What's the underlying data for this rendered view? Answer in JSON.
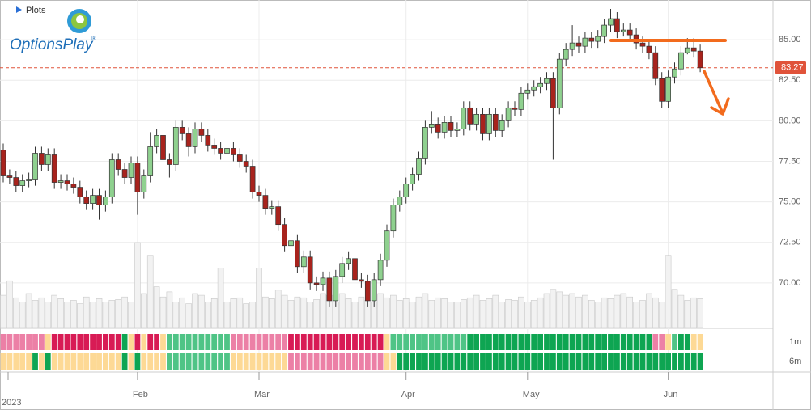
{
  "chart_data": {
    "type": "candlestick",
    "plots_label": "Plots",
    "brand": "OptionsPlay",
    "brand_mark": "®",
    "year_label": "2023",
    "categories": [
      null,
      null,
      null,
      null,
      null,
      null,
      null,
      null,
      null,
      null,
      null,
      null,
      null,
      null,
      null,
      null,
      null,
      null,
      null,
      null,
      null,
      "Feb",
      null,
      null,
      null,
      null,
      null,
      null,
      null,
      null,
      null,
      null,
      null,
      null,
      null,
      null,
      null,
      null,
      null,
      null,
      "Mar",
      null,
      null,
      null,
      null,
      null,
      null,
      null,
      null,
      null,
      null,
      null,
      null,
      null,
      null,
      null,
      null,
      null,
      null,
      null,
      null,
      null,
      null,
      "Apr",
      null,
      null,
      null,
      null,
      null,
      null,
      null,
      null,
      null,
      null,
      null,
      null,
      null,
      null,
      null,
      null,
      null,
      null,
      "May",
      null,
      null,
      null,
      null,
      null,
      null,
      null,
      null,
      null,
      null,
      null,
      null,
      null,
      null,
      null,
      null,
      null,
      null,
      null,
      null,
      null,
      "Jun",
      null,
      null,
      null,
      null,
      null
    ],
    "open": [
      78.2,
      76.6,
      76.5,
      76.0,
      76.3,
      76.4,
      78.0,
      77.3,
      77.9,
      76.2,
      76.3,
      76.1,
      75.9,
      75.3,
      74.9,
      75.4,
      74.8,
      75.3,
      77.6,
      77.0,
      76.5,
      77.4,
      75.6,
      76.6,
      78.4,
      79.1,
      77.6,
      77.3,
      79.6,
      79.2,
      78.4,
      79.5,
      79.1,
      78.5,
      78.3,
      78.0,
      78.3,
      77.9,
      77.5,
      77.2,
      75.6,
      75.4,
      74.6,
      74.7,
      73.6,
      72.3,
      72.6,
      71.0,
      71.6,
      70.0,
      69.9,
      70.3,
      68.9,
      70.4,
      71.2,
      71.5,
      70.2,
      70.1,
      68.9,
      70.2,
      71.4,
      73.2,
      74.8,
      75.3,
      76.1,
      76.7,
      77.7,
      79.6,
      79.8,
      79.3,
      79.9,
      79.4,
      79.5,
      80.8,
      79.8,
      80.4,
      79.2,
      80.4,
      79.4,
      80.0,
      80.8,
      80.7,
      81.7,
      81.9,
      82.1,
      82.3,
      82.6,
      80.8,
      83.8,
      84.4,
      84.8,
      84.6,
      85.1,
      84.9,
      85.2,
      85.9,
      86.3,
      85.5,
      85.6,
      85.3,
      84.8,
      84.6,
      84.2,
      82.6,
      81.2,
      82.7,
      83.2,
      84.2,
      84.5,
      84.3
    ],
    "high": [
      78.6,
      77.0,
      76.9,
      76.7,
      76.8,
      78.4,
      78.4,
      78.3,
      78.3,
      76.7,
      76.7,
      76.5,
      76.3,
      75.7,
      75.8,
      75.8,
      75.7,
      78.0,
      78.0,
      77.4,
      77.8,
      77.8,
      77.0,
      79.3,
      79.5,
      79.5,
      78.0,
      80.0,
      80.0,
      79.6,
      79.9,
      79.9,
      79.5,
      78.9,
      78.7,
      78.7,
      78.7,
      78.3,
      77.9,
      77.6,
      76.0,
      75.8,
      75.1,
      75.1,
      74.0,
      73.0,
      73.0,
      72.0,
      72.0,
      70.4,
      70.7,
      70.7,
      70.8,
      71.6,
      71.9,
      71.9,
      70.6,
      70.5,
      70.6,
      71.8,
      73.6,
      75.2,
      75.7,
      76.5,
      77.1,
      78.1,
      80.0,
      80.6,
      80.2,
      80.3,
      80.3,
      79.9,
      81.2,
      81.2,
      80.8,
      80.8,
      80.8,
      80.8,
      80.4,
      81.2,
      81.2,
      82.1,
      82.3,
      82.5,
      82.7,
      83.0,
      83.0,
      84.2,
      84.8,
      85.9,
      85.2,
      85.5,
      85.5,
      85.6,
      86.3,
      86.9,
      86.7,
      86.0,
      86.0,
      85.7,
      85.2,
      85.0,
      84.6,
      83.0,
      83.1,
      83.6,
      84.6,
      85.1,
      85.1,
      84.7
    ],
    "low": [
      76.2,
      76.1,
      75.6,
      75.6,
      75.9,
      76.0,
      76.9,
      76.9,
      75.8,
      75.8,
      75.7,
      75.5,
      74.9,
      74.5,
      74.5,
      73.9,
      74.4,
      74.9,
      76.6,
      76.1,
      76.1,
      74.2,
      75.2,
      76.2,
      78.0,
      77.2,
      76.5,
      76.9,
      78.8,
      77.8,
      78.0,
      78.7,
      78.1,
      77.9,
      77.6,
      77.6,
      77.5,
      77.1,
      76.8,
      75.2,
      75.0,
      74.2,
      74.2,
      73.2,
      71.9,
      71.9,
      70.6,
      70.6,
      69.6,
      69.5,
      69.5,
      68.5,
      68.5,
      70.0,
      70.8,
      69.8,
      69.7,
      68.5,
      68.5,
      69.8,
      71.0,
      72.8,
      74.4,
      74.9,
      75.7,
      76.3,
      77.3,
      79.2,
      78.9,
      78.9,
      79.0,
      79.0,
      79.1,
      79.4,
      79.4,
      78.8,
      78.8,
      79.0,
      79.0,
      79.6,
      80.3,
      80.3,
      81.3,
      81.5,
      81.7,
      81.9,
      77.6,
      80.4,
      83.4,
      84.0,
      84.2,
      84.2,
      84.5,
      84.5,
      84.8,
      85.5,
      85.1,
      85.2,
      84.9,
      84.4,
      84.2,
      83.8,
      82.2,
      80.8,
      80.8,
      82.3,
      82.8,
      84.1,
      83.9,
      83.0
    ],
    "close": [
      76.6,
      76.5,
      76.0,
      76.3,
      76.4,
      78.0,
      77.3,
      77.9,
      76.2,
      76.3,
      76.1,
      75.9,
      75.3,
      74.9,
      75.4,
      74.8,
      75.3,
      77.6,
      77.0,
      76.5,
      77.4,
      75.6,
      76.6,
      78.4,
      79.1,
      77.6,
      77.3,
      79.6,
      79.2,
      78.4,
      79.5,
      79.1,
      78.5,
      78.3,
      78.0,
      78.3,
      77.9,
      77.5,
      77.2,
      75.6,
      75.4,
      74.6,
      74.7,
      73.6,
      72.3,
      72.6,
      71.0,
      71.6,
      70.0,
      69.9,
      70.3,
      68.9,
      70.4,
      71.2,
      71.5,
      70.2,
      70.1,
      68.9,
      70.2,
      71.4,
      73.2,
      74.8,
      75.3,
      76.1,
      76.7,
      77.7,
      79.6,
      79.8,
      79.3,
      79.9,
      79.4,
      79.5,
      80.8,
      79.8,
      80.4,
      79.2,
      80.4,
      79.4,
      80.0,
      80.8,
      80.7,
      81.7,
      81.9,
      82.1,
      82.3,
      82.6,
      80.8,
      83.8,
      84.4,
      84.8,
      84.6,
      85.1,
      84.9,
      85.2,
      85.9,
      86.3,
      85.5,
      85.6,
      85.3,
      84.8,
      84.6,
      84.2,
      82.6,
      81.2,
      82.7,
      83.2,
      84.2,
      84.5,
      84.3,
      83.27
    ],
    "volume": [
      38,
      55,
      35,
      30,
      40,
      32,
      35,
      30,
      38,
      34,
      30,
      32,
      28,
      36,
      30,
      34,
      30,
      32,
      33,
      36,
      30,
      100,
      40,
      85,
      48,
      36,
      42,
      30,
      35,
      28,
      40,
      38,
      30,
      34,
      70,
      30,
      34,
      35,
      28,
      30,
      70,
      36,
      34,
      44,
      38,
      32,
      36,
      35,
      30,
      33,
      40,
      38,
      30,
      40,
      34,
      30,
      36,
      32,
      30,
      40,
      35,
      38,
      32,
      34,
      30,
      36,
      40,
      32,
      35,
      34,
      30,
      30,
      33,
      35,
      38,
      32,
      34,
      38,
      30,
      33,
      32,
      36,
      30,
      32,
      35,
      40,
      45,
      42,
      38,
      40,
      36,
      38,
      32,
      30,
      35,
      34,
      38,
      40,
      36,
      30,
      32,
      40,
      35,
      30,
      85,
      45,
      38,
      32,
      35,
      34
    ],
    "volume_lim": [
      0,
      100
    ],
    "ylim": [
      67.25,
      87.45
    ],
    "yticks": [
      {
        "value": 70,
        "label": "70.00"
      },
      {
        "value": 72.5,
        "label": "72.50"
      },
      {
        "value": 75,
        "label": "75.00"
      },
      {
        "value": 77.5,
        "label": "77.50"
      },
      {
        "value": 80,
        "label": "80.00"
      },
      {
        "value": 82.5,
        "label": "82.50"
      },
      {
        "value": 85,
        "label": "85.00"
      }
    ],
    "grid": true,
    "last_price": 83.27,
    "up_color": "#8fd18f",
    "down_color": "#a8231d",
    "volume_color": "#f2f2f2",
    "price_line_color": "#e0533a",
    "strip_palette": [
      "#d81b55",
      "#ec80a6",
      "#fdd995",
      "#4fc486",
      "#0ea552"
    ],
    "strips": [
      {
        "name": "1m",
        "values": [
          1,
          1,
          1,
          1,
          1,
          1,
          1,
          2,
          0,
          0,
          0,
          0,
          0,
          0,
          0,
          0,
          0,
          0,
          0,
          4,
          2,
          0,
          2,
          0,
          0,
          2,
          3,
          3,
          3,
          3,
          3,
          3,
          3,
          3,
          3,
          3,
          1,
          1,
          1,
          1,
          1,
          1,
          1,
          1,
          1,
          0,
          0,
          0,
          0,
          0,
          0,
          0,
          0,
          0,
          0,
          0,
          0,
          0,
          0,
          0,
          2,
          3,
          3,
          3,
          3,
          3,
          3,
          3,
          3,
          3,
          3,
          3,
          3,
          4,
          4,
          4,
          4,
          4,
          4,
          4,
          4,
          4,
          4,
          4,
          4,
          4,
          4,
          4,
          4,
          4,
          4,
          4,
          4,
          4,
          4,
          4,
          4,
          4,
          4,
          4,
          4,
          4,
          1,
          1,
          2,
          3,
          4,
          4,
          2,
          2
        ]
      },
      {
        "name": "6m",
        "values": [
          2,
          2,
          2,
          2,
          2,
          4,
          2,
          4,
          2,
          2,
          2,
          2,
          2,
          2,
          2,
          2,
          2,
          2,
          2,
          4,
          2,
          4,
          2,
          2,
          2,
          2,
          3,
          3,
          3,
          3,
          3,
          3,
          3,
          3,
          3,
          3,
          2,
          2,
          2,
          2,
          2,
          2,
          2,
          2,
          2,
          1,
          1,
          1,
          1,
          1,
          1,
          1,
          1,
          1,
          1,
          1,
          1,
          1,
          1,
          1,
          2,
          2,
          4,
          4,
          4,
          4,
          4,
          4,
          4,
          4,
          4,
          4,
          4,
          4,
          4,
          4,
          4,
          4,
          4,
          4,
          4,
          4,
          4,
          4,
          4,
          4,
          4,
          4,
          4,
          4,
          4,
          4,
          4,
          4,
          4,
          4,
          4,
          4,
          4,
          4,
          4,
          4,
          4,
          4,
          4,
          4,
          4,
          4,
          4,
          4
        ]
      }
    ]
  }
}
